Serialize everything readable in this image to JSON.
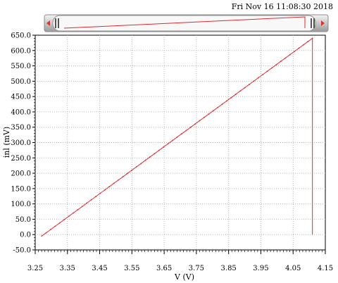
{
  "header": {
    "timestamp": "Fri Nov 16 11:08:30 2018"
  },
  "scroll_thumbnail": {
    "left_arrow_icon": "left-arrow-icon",
    "right_arrow_icon": "right-arrow-icon"
  },
  "colors": {
    "trace": "#e0282c",
    "grid": "#b4b4b4",
    "scroll_bg": "#dcdcdc"
  },
  "chart_data": {
    "type": "line",
    "title": "",
    "xlabel": "V (V)",
    "ylabel": "inl (mV)",
    "xlim": [
      3.25,
      4.15
    ],
    "ylim": [
      -50.0,
      650.0
    ],
    "x_ticks": [
      3.25,
      3.35,
      3.45,
      3.55,
      3.65,
      3.75,
      3.85,
      3.95,
      4.05,
      4.15
    ],
    "x_tick_labels": [
      "3.25",
      "3.35",
      "3.45",
      "3.55",
      "3.65",
      "3.75",
      "3.85",
      "3.95",
      "4.05",
      "4.15"
    ],
    "y_ticks": [
      -50,
      0,
      50,
      100,
      150,
      200,
      250,
      300,
      350,
      400,
      450,
      500,
      550,
      600,
      650
    ],
    "y_tick_labels": [
      "-50.0",
      "0.0",
      "50.0",
      "100.0",
      "150.0",
      "200.0",
      "250.0",
      "300.0",
      "350.0",
      "400.0",
      "450.0",
      "500.0",
      "550.0",
      "600.0",
      "650.0"
    ],
    "grid": true,
    "series": [
      {
        "name": "inl",
        "x": [
          3.27,
          4.11,
          4.11
        ],
        "y": [
          -5.0,
          640.0,
          0.0
        ]
      }
    ]
  }
}
